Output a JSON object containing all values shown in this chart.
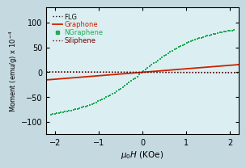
{
  "title": "",
  "xlabel": "$\\mu_0H$ (KOe)",
  "ylabel": "Moment (emu/g) x 10$^{-4}$",
  "xlim": [
    -2.2,
    2.2
  ],
  "ylim": [
    -125,
    130
  ],
  "yticks": [
    -100,
    -50,
    0,
    50,
    100
  ],
  "xticks": [
    -2,
    -1,
    0,
    1,
    2
  ],
  "bg_color": "#c5d9e0",
  "flg_color": "#111111",
  "graphone_color": "#cc2200",
  "ngraphene_color": "#22aa55",
  "siliphene_color": "#6B0000",
  "legend_labels": [
    "FLG",
    "Graphone",
    "NGraphene",
    "Siliphene"
  ],
  "ngraphene_Ms": 115,
  "ngraphene_a": 0.55,
  "graphone_slope": 7.0,
  "flg_slope": -0.4,
  "siliphene_slope": -0.15
}
